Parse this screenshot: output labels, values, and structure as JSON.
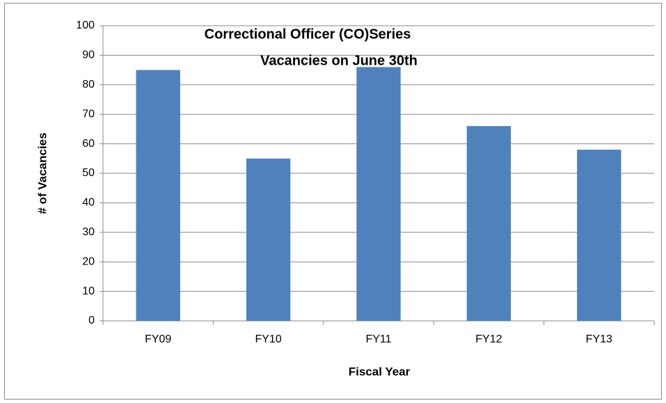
{
  "chart_data": {
    "type": "bar",
    "title": [
      "Correctional Officer (CO)Series",
      "Vacancies on June 30th"
    ],
    "x_label": "Fiscal Year",
    "y_label": "# of Vacancies",
    "categories": [
      "FY09",
      "FY10",
      "FY11",
      "FY12",
      "FY13"
    ],
    "values": [
      85,
      55,
      86,
      66,
      58
    ],
    "color": "#4f81bd",
    "ylim": [
      0,
      100
    ],
    "yticks": [
      0,
      10,
      20,
      30,
      40,
      50,
      60,
      70,
      80,
      90,
      100
    ],
    "grid": true
  }
}
